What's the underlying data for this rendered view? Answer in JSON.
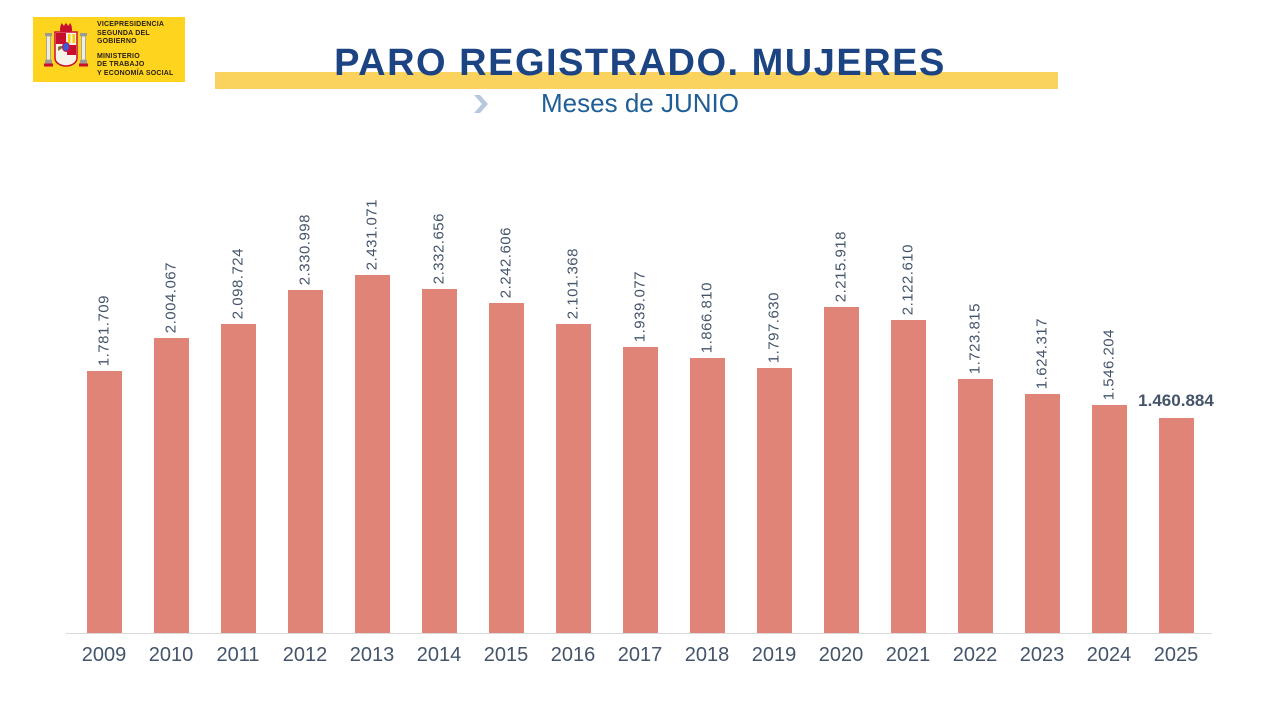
{
  "slide": {
    "background": "#FFFFFF"
  },
  "logo": {
    "background": "#FFD41E",
    "icon": "spain-coat-of-arms-icon",
    "lines_top": [
      "VICEPRESIDENCIA",
      "SEGUNDA DEL GOBIERNO"
    ],
    "lines_bottom": [
      "MINISTERIO",
      "DE TRABAJO",
      "Y ECONOMÍA SOCIAL"
    ],
    "text_color": "#2B2118"
  },
  "header": {
    "title": "PARO REGISTRADO. MUJERES",
    "title_color": "#1C4482",
    "underline_color": "#FAD35F",
    "subtitle": "Meses de JUNIO",
    "subtitle_color": "#1F5E96",
    "chevron_icon": "chevron-right",
    "chevron_color": "#B7C7E0"
  },
  "chart_data": {
    "type": "bar",
    "title": "PARO REGISTRADO. MUJERES",
    "subtitle": "Meses de JUNIO",
    "xlabel": "",
    "ylabel": "",
    "grid": false,
    "legend": false,
    "categories": [
      "2009",
      "2010",
      "2011",
      "2012",
      "2013",
      "2014",
      "2015",
      "2016",
      "2017",
      "2018",
      "2019",
      "2020",
      "2021",
      "2022",
      "2023",
      "2024",
      "2025"
    ],
    "values": [
      1781709,
      2004067,
      2098724,
      2330998,
      2431071,
      2332656,
      2242606,
      2101368,
      1939077,
      1866810,
      1797630,
      2215918,
      2122610,
      1723815,
      1624317,
      1546204,
      1460884
    ],
    "value_labels": [
      "1.781.709",
      "2.004.067",
      "2.098.724",
      "2.330.998",
      "2.431.071",
      "2.332.656",
      "2.242.606",
      "2.101.368",
      "1.939.077",
      "1.866.810",
      "1.797.630",
      "2.215.918",
      "2.122.610",
      "1.723.815",
      "1.624.317",
      "1.546.204",
      "1.460.884"
    ],
    "value_label_rotation": "vertical-bottom-to-top",
    "last_label_style": "bold-horizontal",
    "bar_color": "#E18478",
    "label_color": "#44546A",
    "axis_line_color": "#D9D9D9",
    "ylim": [
      0,
      2500000
    ]
  }
}
